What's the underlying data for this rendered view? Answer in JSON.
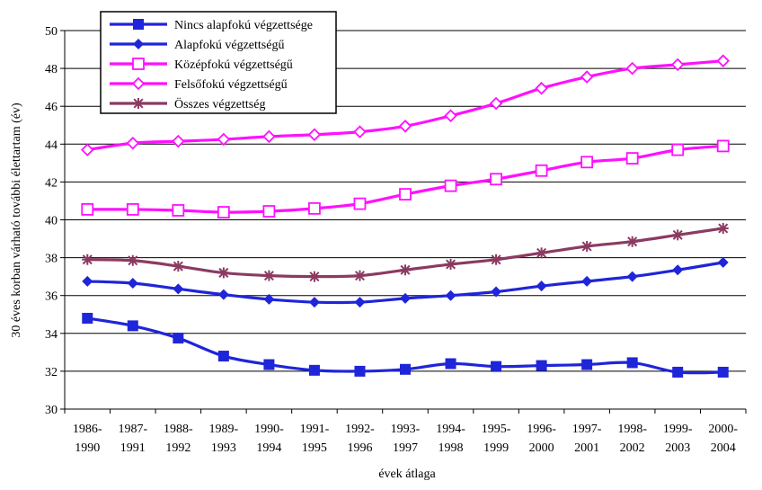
{
  "chart_data": {
    "type": "line",
    "title": "",
    "xlabel": "évek átlaga",
    "ylabel": "30 éves korban várható további élettartam (év)",
    "ylim": [
      30,
      50
    ],
    "yticks": [
      "30",
      "32",
      "34",
      "36",
      "38",
      "40",
      "42",
      "44",
      "46",
      "48",
      "50"
    ],
    "grid": true,
    "legend_position": "top-left",
    "categories": [
      [
        "1986-",
        "1990"
      ],
      [
        "1987-",
        "1991"
      ],
      [
        "1988-",
        "1992"
      ],
      [
        "1989-",
        "1993"
      ],
      [
        "1990-",
        "1994"
      ],
      [
        "1991-",
        "1995"
      ],
      [
        "1992-",
        "1996"
      ],
      [
        "1993-",
        "1997"
      ],
      [
        "1994-",
        "1998"
      ],
      [
        "1995-",
        "1999"
      ],
      [
        "1996-",
        "2000"
      ],
      [
        "1997-",
        "2001"
      ],
      [
        "1998-",
        "2002"
      ],
      [
        "1999-",
        "2003"
      ],
      [
        "2000-",
        "2004"
      ]
    ],
    "series": [
      {
        "name": "Nincs alapfokú végzettsége",
        "color": "#1f25d8",
        "marker": "square-filled",
        "values": [
          34.8,
          34.4,
          33.75,
          32.8,
          32.35,
          32.05,
          32.0,
          32.1,
          32.4,
          32.25,
          32.3,
          32.35,
          32.45,
          31.95,
          31.95
        ]
      },
      {
        "name": "Alapfokú végzettségű",
        "color": "#1f25d8",
        "marker": "diamond-filled",
        "values": [
          36.75,
          36.65,
          36.35,
          36.05,
          35.8,
          35.65,
          35.65,
          35.85,
          36.0,
          36.2,
          36.5,
          36.75,
          37.0,
          37.35,
          37.75
        ]
      },
      {
        "name": "Középfokú végzettségű",
        "color": "#ff10ff",
        "marker": "square-open",
        "values": [
          40.55,
          40.55,
          40.5,
          40.4,
          40.45,
          40.6,
          40.85,
          41.35,
          41.8,
          42.15,
          42.6,
          43.05,
          43.25,
          43.7,
          43.9
        ]
      },
      {
        "name": "Felsőfokú végzettségű",
        "color": "#ff10ff",
        "marker": "diamond-open",
        "values": [
          43.7,
          44.05,
          44.15,
          44.25,
          44.4,
          44.5,
          44.65,
          44.95,
          45.5,
          46.15,
          46.95,
          47.55,
          48.0,
          48.2,
          48.4
        ]
      },
      {
        "name": "Összes végzettség",
        "color": "#8b3a62",
        "marker": "star",
        "values": [
          37.9,
          37.85,
          37.55,
          37.2,
          37.05,
          37.0,
          37.05,
          37.35,
          37.65,
          37.9,
          38.25,
          38.6,
          38.85,
          39.2,
          39.55
        ]
      }
    ]
  }
}
